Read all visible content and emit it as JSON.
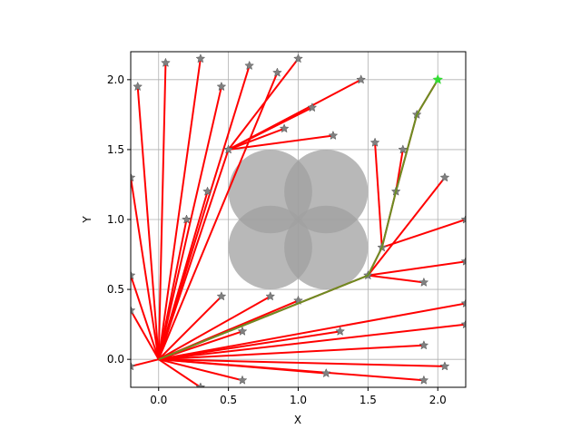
{
  "chart_data": {
    "type": "rrt",
    "xlabel": "X",
    "ylabel": "Y",
    "xlim": [
      -0.2,
      2.2
    ],
    "ylim": [
      -0.2,
      2.2
    ],
    "xticks": [
      {
        "value": 0,
        "label": "0.0"
      },
      {
        "value": 0.5,
        "label": "0.5"
      },
      {
        "value": 1,
        "label": "1.0"
      },
      {
        "value": 1.5,
        "label": "1.5"
      },
      {
        "value": 2,
        "label": "2.0"
      }
    ],
    "yticks": [
      {
        "value": 0,
        "label": "0.0"
      },
      {
        "value": 0.5,
        "label": "0.5"
      },
      {
        "value": 1,
        "label": "1.0"
      },
      {
        "value": 1.5,
        "label": "1.5"
      },
      {
        "value": 2,
        "label": "2.0"
      }
    ],
    "grid": true,
    "obstacles": {
      "color": "#a0a0a0",
      "x": [
        0.8,
        1.2,
        0.8,
        1.2
      ],
      "y": [
        1.2,
        1.2,
        0.8,
        0.8
      ],
      "r": [
        0.3,
        0.3,
        0.3,
        0.3
      ]
    },
    "edge_color": "#ff0000",
    "node_color": "#808080",
    "edges": {
      "x1": [
        0,
        0,
        0,
        0,
        0,
        0,
        0,
        0,
        0,
        0,
        0,
        0,
        0,
        0,
        0,
        0,
        0,
        0,
        0,
        0,
        0,
        0,
        0,
        0,
        0,
        0,
        0,
        0.5,
        0.5,
        0.5,
        0.5,
        0.5,
        1.5,
        1.6,
        1.7,
        1.85,
        1.6,
        1.6,
        1.5,
        1.5,
        1.5,
        1.7
      ],
      "y1": [
        0,
        0,
        0,
        0,
        0,
        0,
        0,
        0,
        0,
        0,
        0,
        0,
        0,
        0,
        0,
        0,
        0,
        0,
        0,
        0,
        0,
        0,
        0,
        0,
        0,
        0,
        0,
        1.5,
        1.5,
        1.5,
        1.5,
        1.5,
        0.6,
        0.8,
        1.2,
        1.75,
        0.8,
        0.8,
        0.6,
        0.6,
        0.6,
        1.2
      ],
      "x2": [
        -0.15,
        0.05,
        0.3,
        0.45,
        0.65,
        0.85,
        0.5,
        0.35,
        0.2,
        -0.2,
        -0.2,
        0.45,
        0.8,
        1.0,
        1.5,
        2.2,
        1.9,
        2.05,
        1.9,
        1.2,
        0.6,
        0.3,
        -0.2,
        -0.2,
        1.3,
        2.2,
        0.6,
        1.1,
        1.25,
        1.45,
        1.0,
        0.9,
        1.6,
        1.7,
        1.85,
        2.0,
        1.55,
        2.2,
        2.05,
        2.2,
        1.9,
        1.75
      ],
      "y2": [
        1.95,
        2.12,
        2.15,
        1.95,
        2.1,
        2.05,
        1.5,
        1.2,
        1.0,
        1.3,
        0.6,
        0.45,
        0.45,
        0.42,
        0.6,
        0.4,
        0.1,
        -0.05,
        -0.15,
        -0.1,
        -0.15,
        -0.2,
        -0.05,
        0.35,
        0.2,
        0.25,
        0.2,
        1.8,
        1.6,
        2.0,
        2.15,
        1.65,
        0.8,
        1.2,
        1.75,
        2.0,
        1.55,
        1.0,
        1.3,
        0.7,
        0.55,
        1.5
      ]
    },
    "path": {
      "color": "#6b8e23",
      "x": [
        0,
        1.5,
        1.6,
        1.7,
        1.85,
        2.0
      ],
      "y": [
        0,
        0.6,
        0.8,
        1.2,
        1.75,
        2.0
      ]
    },
    "goal": {
      "color": "#33dd33",
      "x": 2.0,
      "y": 2.0
    }
  }
}
